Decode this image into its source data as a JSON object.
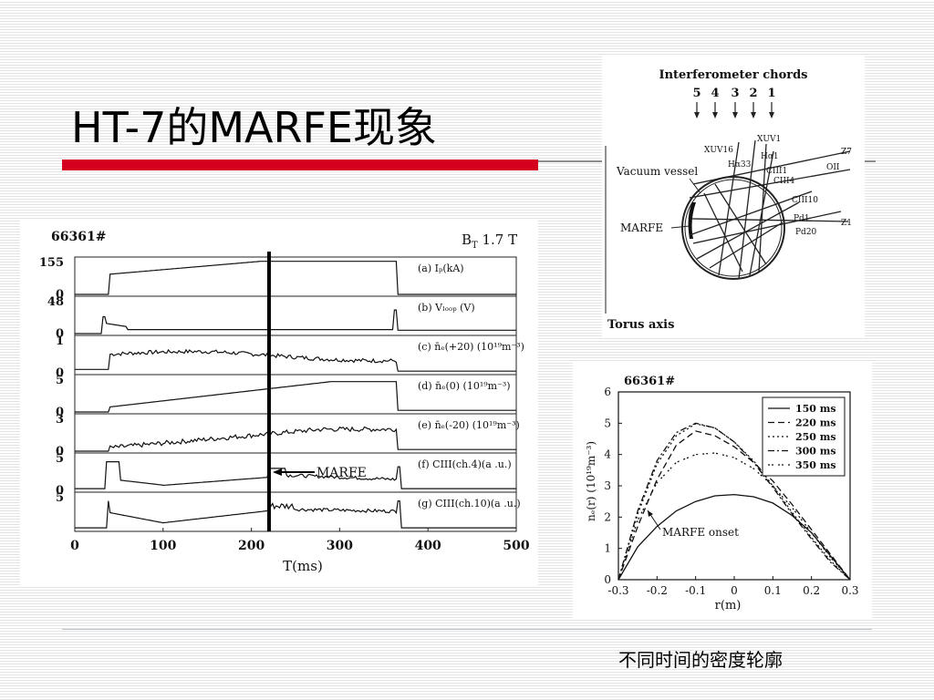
{
  "slide": {
    "title": "HT-7的MARFE现象",
    "caption": "不同时间的密度轮廓"
  },
  "timeseries_figure": {
    "shot_label": "66361#",
    "field_label": "B",
    "field_sub": "T",
    "field_value": " 1.7 T",
    "xlabel": "T(ms)",
    "xticks": [
      "0",
      "100",
      "200",
      "300",
      "400",
      "500"
    ],
    "marker_label": "MARFE",
    "panels": [
      {
        "label": "(a) Iₚ(kA)",
        "ytop": "155",
        "ybot": "0"
      },
      {
        "label": "(b) Vₗₒₒₚ (V)",
        "ytop": "48",
        "ybot": "0"
      },
      {
        "label": "(c) n̄ₑ(+20) (10¹⁹m⁻³)",
        "ytop": "1",
        "ybot": "0"
      },
      {
        "label": "(d) n̄ₑ(0) (10¹⁹m⁻³)",
        "ytop": "5",
        "ybot": "0"
      },
      {
        "label": "(e) n̄ₑ(-20) (10¹⁹m⁻³)",
        "ytop": "3",
        "ybot": "0"
      },
      {
        "label": "(f) CIII(ch.4)(a .u.)",
        "ytop": "5",
        "ybot": "0"
      },
      {
        "label": "(g) CIII(ch.10)(a .u.)",
        "ytop": "5",
        "ybot": ""
      }
    ]
  },
  "chords_diagram": {
    "title": "Interferometer chords",
    "chord_numbers": [
      "5",
      "4",
      "3",
      "2",
      "1"
    ],
    "vacuum_vessel": "Vacuum vessel",
    "marfe": "MARFE",
    "torus_axis": "Torus axis",
    "labels": [
      "XUV1",
      "XUV16",
      "Hα1",
      "Hα33",
      "Z7",
      "CIII1",
      "OII",
      "CIII4",
      "CIII10",
      "Pd1",
      "Z1",
      "Pd20"
    ]
  },
  "chart_data": {
    "type": "line",
    "title": "66361#",
    "xlabel": "r(m)",
    "ylabel": "nₑ(r) (10¹⁹m⁻³)",
    "xlim": [
      -0.3,
      0.3
    ],
    "ylim": [
      0,
      6
    ],
    "xticks": [
      "-0.3",
      "-0.2",
      "-0.1",
      "0",
      "0.1",
      "0.2",
      "0.3"
    ],
    "yticks": [
      "0",
      "1",
      "2",
      "3",
      "4",
      "5",
      "6"
    ],
    "legend_position": "top-right",
    "annotation": "MARFE onset",
    "series": [
      {
        "name": "150 ms",
        "x": [
          -0.3,
          -0.25,
          -0.2,
          -0.15,
          -0.1,
          -0.05,
          0,
          0.05,
          0.1,
          0.15,
          0.2,
          0.25,
          0.3
        ],
        "y": [
          0,
          1.05,
          1.7,
          2.2,
          2.5,
          2.68,
          2.72,
          2.65,
          2.45,
          2.05,
          1.5,
          0.75,
          0
        ]
      },
      {
        "name": "220 ms",
        "x": [
          -0.3,
          -0.25,
          -0.2,
          -0.15,
          -0.1,
          -0.05,
          0,
          0.05,
          0.1,
          0.15,
          0.2,
          0.25,
          0.3
        ],
        "y": [
          0,
          1.7,
          3.2,
          4.3,
          4.75,
          4.6,
          4.25,
          3.75,
          3.15,
          2.4,
          1.6,
          0.8,
          0
        ]
      },
      {
        "name": "250 ms",
        "x": [
          -0.3,
          -0.25,
          -0.2,
          -0.15,
          -0.1,
          -0.05,
          0,
          0.05,
          0.1,
          0.15,
          0.2,
          0.25,
          0.3
        ],
        "y": [
          0,
          2.1,
          3.7,
          4.6,
          4.98,
          4.85,
          4.4,
          3.8,
          3.0,
          2.15,
          1.35,
          0.6,
          0
        ]
      },
      {
        "name": "300 ms",
        "x": [
          -0.3,
          -0.25,
          -0.2,
          -0.15,
          -0.1,
          -0.05,
          0,
          0.05,
          0.1,
          0.15,
          0.2,
          0.25,
          0.3
        ],
        "y": [
          0,
          2.2,
          3.8,
          4.7,
          5.0,
          4.85,
          4.4,
          3.75,
          2.95,
          2.1,
          1.3,
          0.55,
          0
        ]
      },
      {
        "name": "350 ms",
        "x": [
          -0.3,
          -0.25,
          -0.2,
          -0.15,
          -0.1,
          -0.05,
          0,
          0.05,
          0.1,
          0.15,
          0.2,
          0.25,
          0.3
        ],
        "y": [
          0,
          1.9,
          3.1,
          3.75,
          4.0,
          4.05,
          3.9,
          3.55,
          3.0,
          2.3,
          1.5,
          0.7,
          0
        ]
      }
    ]
  }
}
